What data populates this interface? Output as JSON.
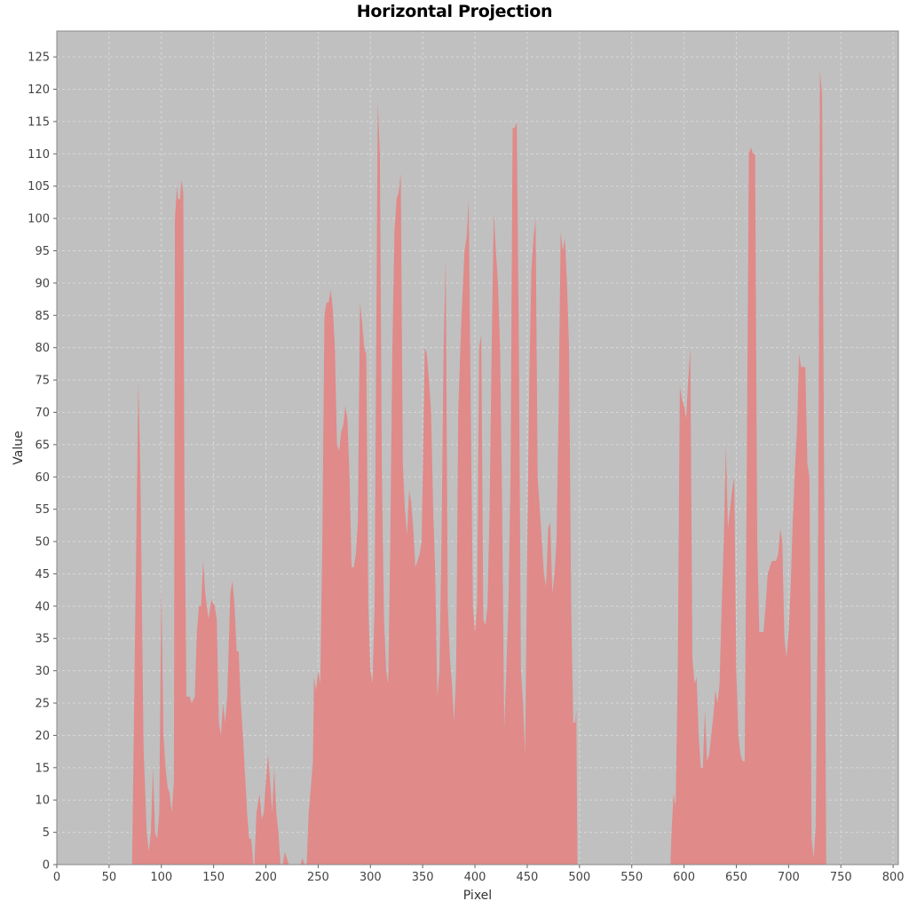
{
  "chart_data": {
    "type": "area",
    "title": "Horizontal Projection",
    "xlabel": "Pixel",
    "ylabel": "Value",
    "xlim": [
      0,
      805
    ],
    "ylim": [
      0,
      129
    ],
    "x_ticks": [
      0,
      50,
      100,
      150,
      200,
      250,
      300,
      350,
      400,
      450,
      500,
      550,
      600,
      650,
      700,
      750,
      800
    ],
    "y_ticks": [
      0,
      5,
      10,
      15,
      20,
      25,
      30,
      35,
      40,
      45,
      50,
      55,
      60,
      65,
      70,
      75,
      80,
      85,
      90,
      95,
      100,
      105,
      110,
      115,
      120,
      125
    ],
    "grid": true,
    "plot_background": "#c0c0c0",
    "gridline_color": "#d8d8d8",
    "series": [
      {
        "color": "#e08a8a",
        "points": [
          [
            0,
            0
          ],
          [
            72,
            0
          ],
          [
            74,
            25
          ],
          [
            78,
            75
          ],
          [
            80,
            60
          ],
          [
            83,
            18
          ],
          [
            86,
            5
          ],
          [
            88,
            2
          ],
          [
            90,
            5
          ],
          [
            92,
            15
          ],
          [
            94,
            5
          ],
          [
            96,
            4
          ],
          [
            98,
            8
          ],
          [
            100,
            43
          ],
          [
            102,
            20
          ],
          [
            104,
            15
          ],
          [
            106,
            12
          ],
          [
            108,
            11
          ],
          [
            110,
            8
          ],
          [
            112,
            13
          ],
          [
            113,
            100
          ],
          [
            115,
            105
          ],
          [
            116,
            103
          ],
          [
            118,
            103
          ],
          [
            119,
            106
          ],
          [
            121,
            104
          ],
          [
            122,
            60
          ],
          [
            124,
            26
          ],
          [
            127,
            26
          ],
          [
            129,
            25
          ],
          [
            132,
            26
          ],
          [
            134,
            36
          ],
          [
            136,
            40
          ],
          [
            138,
            40
          ],
          [
            140,
            47
          ],
          [
            142,
            42
          ],
          [
            145,
            38
          ],
          [
            148,
            41
          ],
          [
            151,
            40
          ],
          [
            153,
            38
          ],
          [
            155,
            22
          ],
          [
            157,
            20
          ],
          [
            159,
            25
          ],
          [
            161,
            22
          ],
          [
            163,
            26
          ],
          [
            166,
            42
          ],
          [
            168,
            44
          ],
          [
            170,
            40
          ],
          [
            172,
            33
          ],
          [
            174,
            33
          ],
          [
            176,
            25
          ],
          [
            178,
            20
          ],
          [
            180,
            14
          ],
          [
            182,
            8
          ],
          [
            184,
            4
          ],
          [
            186,
            4
          ],
          [
            188,
            0
          ],
          [
            189,
            0
          ],
          [
            191,
            8
          ],
          [
            194,
            11
          ],
          [
            196,
            7
          ],
          [
            198,
            8
          ],
          [
            200,
            13
          ],
          [
            202,
            17
          ],
          [
            204,
            13
          ],
          [
            206,
            8
          ],
          [
            208,
            15
          ],
          [
            210,
            8
          ],
          [
            212,
            5
          ],
          [
            214,
            0
          ],
          [
            216,
            0
          ],
          [
            218,
            2
          ],
          [
            220,
            1
          ],
          [
            222,
            0
          ],
          [
            233,
            0
          ],
          [
            235,
            1
          ],
          [
            237,
            0
          ],
          [
            239,
            0
          ],
          [
            241,
            8
          ],
          [
            243,
            12
          ],
          [
            245,
            16
          ],
          [
            246,
            29
          ],
          [
            248,
            27
          ],
          [
            250,
            30
          ],
          [
            252,
            28
          ],
          [
            254,
            50
          ],
          [
            256,
            85
          ],
          [
            258,
            87
          ],
          [
            260,
            87
          ],
          [
            262,
            89
          ],
          [
            264,
            86
          ],
          [
            266,
            80
          ],
          [
            268,
            65
          ],
          [
            270,
            64
          ],
          [
            272,
            67
          ],
          [
            274,
            68
          ],
          [
            276,
            71
          ],
          [
            278,
            69
          ],
          [
            280,
            60
          ],
          [
            282,
            46
          ],
          [
            284,
            46
          ],
          [
            286,
            48
          ],
          [
            288,
            53
          ],
          [
            290,
            87
          ],
          [
            292,
            84
          ],
          [
            294,
            80
          ],
          [
            296,
            79
          ],
          [
            298,
            40
          ],
          [
            300,
            30
          ],
          [
            302,
            28
          ],
          [
            304,
            40
          ],
          [
            307,
            118
          ],
          [
            309,
            110
          ],
          [
            311,
            60
          ],
          [
            313,
            38
          ],
          [
            315,
            30
          ],
          [
            317,
            28
          ],
          [
            319,
            50
          ],
          [
            321,
            80
          ],
          [
            323,
            98
          ],
          [
            325,
            103
          ],
          [
            327,
            104
          ],
          [
            329,
            107
          ],
          [
            331,
            62
          ],
          [
            333,
            55
          ],
          [
            335,
            51
          ],
          [
            337,
            58
          ],
          [
            339,
            56
          ],
          [
            341,
            52
          ],
          [
            343,
            46
          ],
          [
            345,
            47
          ],
          [
            347,
            48
          ],
          [
            349,
            50
          ],
          [
            352,
            80
          ],
          [
            354,
            79
          ],
          [
            356,
            75
          ],
          [
            358,
            70
          ],
          [
            360,
            55
          ],
          [
            362,
            45
          ],
          [
            364,
            26
          ],
          [
            366,
            30
          ],
          [
            368,
            50
          ],
          [
            370,
            80
          ],
          [
            372,
            94
          ],
          [
            374,
            40
          ],
          [
            376,
            32
          ],
          [
            378,
            28
          ],
          [
            380,
            22
          ],
          [
            382,
            30
          ],
          [
            384,
            70
          ],
          [
            386,
            80
          ],
          [
            388,
            88
          ],
          [
            390,
            95
          ],
          [
            392,
            97
          ],
          [
            394,
            103
          ],
          [
            396,
            70
          ],
          [
            398,
            40
          ],
          [
            400,
            36
          ],
          [
            402,
            40
          ],
          [
            404,
            80
          ],
          [
            406,
            82
          ],
          [
            408,
            38
          ],
          [
            410,
            37
          ],
          [
            412,
            40
          ],
          [
            414,
            55
          ],
          [
            416,
            80
          ],
          [
            418,
            101
          ],
          [
            420,
            95
          ],
          [
            422,
            90
          ],
          [
            424,
            80
          ],
          [
            426,
            55
          ],
          [
            428,
            21
          ],
          [
            430,
            30
          ],
          [
            432,
            40
          ],
          [
            434,
            60
          ],
          [
            436,
            114
          ],
          [
            438,
            114
          ],
          [
            440,
            115
          ],
          [
            442,
            80
          ],
          [
            444,
            30
          ],
          [
            446,
            25
          ],
          [
            448,
            17
          ],
          [
            450,
            50
          ],
          [
            452,
            75
          ],
          [
            454,
            92
          ],
          [
            456,
            97
          ],
          [
            458,
            100
          ],
          [
            460,
            60
          ],
          [
            462,
            55
          ],
          [
            464,
            50
          ],
          [
            466,
            45
          ],
          [
            468,
            43
          ],
          [
            470,
            52
          ],
          [
            472,
            53
          ],
          [
            474,
            42
          ],
          [
            476,
            45
          ],
          [
            478,
            50
          ],
          [
            480,
            70
          ],
          [
            482,
            98
          ],
          [
            484,
            95
          ],
          [
            486,
            97
          ],
          [
            488,
            90
          ],
          [
            490,
            80
          ],
          [
            492,
            40
          ],
          [
            494,
            22
          ],
          [
            496,
            22
          ],
          [
            497,
            24
          ],
          [
            498,
            0
          ],
          [
            587,
            0
          ],
          [
            588,
            5
          ],
          [
            590,
            11
          ],
          [
            592,
            9
          ],
          [
            594,
            30
          ],
          [
            596,
            74
          ],
          [
            598,
            72
          ],
          [
            600,
            71
          ],
          [
            602,
            69
          ],
          [
            604,
            75
          ],
          [
            606,
            80
          ],
          [
            608,
            32
          ],
          [
            610,
            28
          ],
          [
            612,
            29
          ],
          [
            614,
            20
          ],
          [
            616,
            15
          ],
          [
            618,
            15
          ],
          [
            620,
            24
          ],
          [
            622,
            16
          ],
          [
            624,
            17
          ],
          [
            626,
            20
          ],
          [
            628,
            23
          ],
          [
            630,
            27
          ],
          [
            632,
            25
          ],
          [
            634,
            28
          ],
          [
            636,
            40
          ],
          [
            638,
            50
          ],
          [
            640,
            65
          ],
          [
            642,
            52
          ],
          [
            644,
            55
          ],
          [
            646,
            58
          ],
          [
            648,
            60
          ],
          [
            650,
            30
          ],
          [
            652,
            20
          ],
          [
            654,
            17
          ],
          [
            656,
            16
          ],
          [
            658,
            16
          ],
          [
            660,
            60
          ],
          [
            662,
            110
          ],
          [
            664,
            111
          ],
          [
            666,
            110
          ],
          [
            668,
            110
          ],
          [
            670,
            50
          ],
          [
            672,
            36
          ],
          [
            674,
            36
          ],
          [
            676,
            36
          ],
          [
            678,
            40
          ],
          [
            680,
            45
          ],
          [
            682,
            46
          ],
          [
            684,
            47
          ],
          [
            686,
            47
          ],
          [
            688,
            47
          ],
          [
            690,
            48
          ],
          [
            692,
            52
          ],
          [
            694,
            50
          ],
          [
            696,
            35
          ],
          [
            698,
            32
          ],
          [
            700,
            36
          ],
          [
            702,
            43
          ],
          [
            704,
            53
          ],
          [
            706,
            61
          ],
          [
            708,
            67
          ],
          [
            710,
            79
          ],
          [
            712,
            77
          ],
          [
            714,
            77
          ],
          [
            716,
            77
          ],
          [
            718,
            62
          ],
          [
            720,
            60
          ],
          [
            722,
            4
          ],
          [
            724,
            1
          ],
          [
            726,
            6
          ],
          [
            728,
            40
          ],
          [
            730,
            123
          ],
          [
            732,
            119
          ],
          [
            734,
            60
          ],
          [
            736,
            0
          ],
          [
            805,
            0
          ]
        ]
      }
    ]
  }
}
